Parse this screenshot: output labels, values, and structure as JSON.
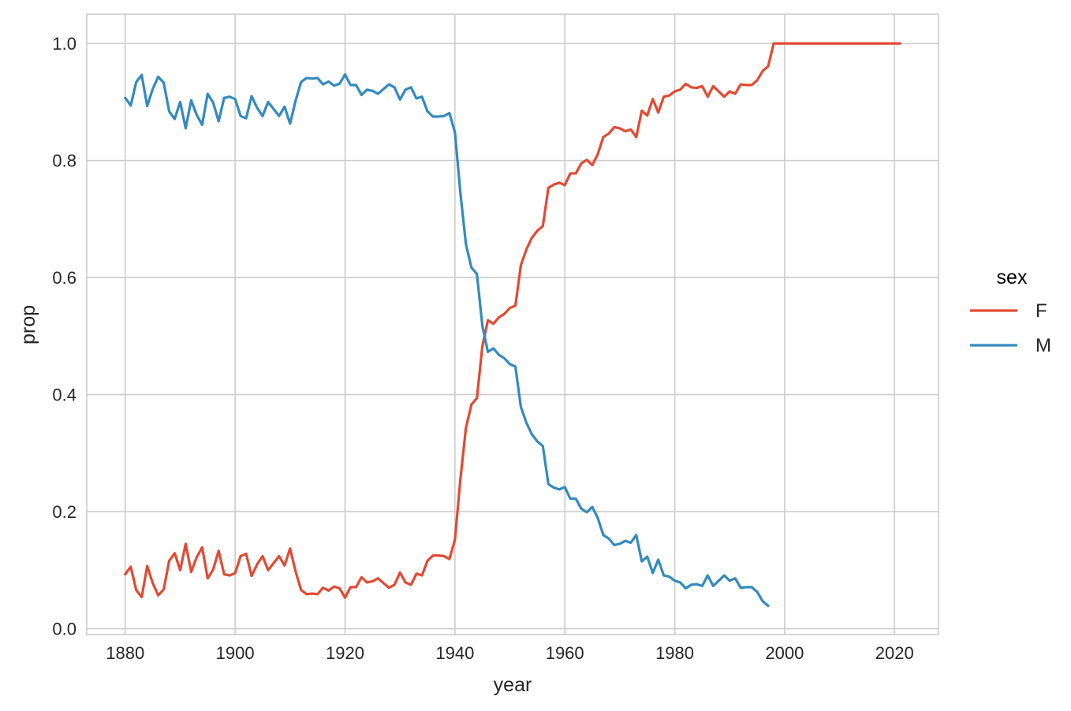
{
  "chart_data": {
    "type": "line",
    "xlabel": "year",
    "ylabel": "prop",
    "xlim": [
      1873,
      2028
    ],
    "ylim": [
      -0.01,
      1.05
    ],
    "xticks": [
      1880,
      1900,
      1920,
      1940,
      1960,
      1980,
      2000,
      2020
    ],
    "yticks": [
      0.0,
      0.2,
      0.4,
      0.6,
      0.8,
      1.0
    ],
    "xtick_labels": [
      "1880",
      "1900",
      "1920",
      "1940",
      "1960",
      "1980",
      "2000",
      "2020"
    ],
    "ytick_labels": [
      "0.0",
      "0.2",
      "0.4",
      "0.6",
      "0.8",
      "1.0"
    ],
    "grid": true,
    "legend": {
      "title": "sex",
      "placement": "right"
    },
    "series": [
      {
        "name": "F",
        "color": "#e24a33",
        "points": [
          [
            1880,
            0.093
          ],
          [
            1881,
            0.106
          ],
          [
            1882,
            0.066
          ],
          [
            1883,
            0.054
          ],
          [
            1884,
            0.107
          ],
          [
            1885,
            0.078
          ],
          [
            1886,
            0.057
          ],
          [
            1887,
            0.067
          ],
          [
            1888,
            0.116
          ],
          [
            1889,
            0.129
          ],
          [
            1890,
            0.1
          ],
          [
            1891,
            0.145
          ],
          [
            1892,
            0.097
          ],
          [
            1893,
            0.122
          ],
          [
            1894,
            0.139
          ],
          [
            1895,
            0.086
          ],
          [
            1896,
            0.101
          ],
          [
            1897,
            0.133
          ],
          [
            1898,
            0.093
          ],
          [
            1899,
            0.091
          ],
          [
            1900,
            0.095
          ],
          [
            1901,
            0.124
          ],
          [
            1902,
            0.128
          ],
          [
            1903,
            0.09
          ],
          [
            1904,
            0.11
          ],
          [
            1905,
            0.124
          ],
          [
            1906,
            0.1
          ],
          [
            1907,
            0.112
          ],
          [
            1908,
            0.124
          ],
          [
            1909,
            0.108
          ],
          [
            1910,
            0.137
          ],
          [
            1911,
            0.098
          ],
          [
            1912,
            0.066
          ],
          [
            1913,
            0.059
          ],
          [
            1914,
            0.06
          ],
          [
            1915,
            0.059
          ],
          [
            1916,
            0.07
          ],
          [
            1917,
            0.065
          ],
          [
            1918,
            0.072
          ],
          [
            1919,
            0.069
          ],
          [
            1920,
            0.053
          ],
          [
            1921,
            0.071
          ],
          [
            1922,
            0.071
          ],
          [
            1923,
            0.088
          ],
          [
            1924,
            0.079
          ],
          [
            1925,
            0.081
          ],
          [
            1926,
            0.086
          ],
          [
            1927,
            0.078
          ],
          [
            1928,
            0.07
          ],
          [
            1929,
            0.075
          ],
          [
            1930,
            0.096
          ],
          [
            1931,
            0.079
          ],
          [
            1932,
            0.075
          ],
          [
            1933,
            0.094
          ],
          [
            1934,
            0.091
          ],
          [
            1935,
            0.116
          ],
          [
            1936,
            0.125
          ],
          [
            1937,
            0.125
          ],
          [
            1938,
            0.124
          ],
          [
            1939,
            0.119
          ],
          [
            1940,
            0.152
          ],
          [
            1941,
            0.256
          ],
          [
            1942,
            0.343
          ],
          [
            1943,
            0.383
          ],
          [
            1944,
            0.394
          ],
          [
            1945,
            0.483
          ],
          [
            1946,
            0.527
          ],
          [
            1947,
            0.521
          ],
          [
            1948,
            0.532
          ],
          [
            1949,
            0.538
          ],
          [
            1950,
            0.548
          ],
          [
            1951,
            0.552
          ],
          [
            1952,
            0.621
          ],
          [
            1953,
            0.648
          ],
          [
            1954,
            0.668
          ],
          [
            1955,
            0.68
          ],
          [
            1956,
            0.688
          ],
          [
            1957,
            0.753
          ],
          [
            1958,
            0.759
          ],
          [
            1959,
            0.762
          ],
          [
            1960,
            0.758
          ],
          [
            1961,
            0.778
          ],
          [
            1962,
            0.778
          ],
          [
            1963,
            0.795
          ],
          [
            1964,
            0.801
          ],
          [
            1965,
            0.792
          ],
          [
            1966,
            0.811
          ],
          [
            1967,
            0.84
          ],
          [
            1968,
            0.846
          ],
          [
            1969,
            0.857
          ],
          [
            1970,
            0.855
          ],
          [
            1971,
            0.85
          ],
          [
            1972,
            0.853
          ],
          [
            1973,
            0.84
          ],
          [
            1974,
            0.885
          ],
          [
            1975,
            0.877
          ],
          [
            1976,
            0.905
          ],
          [
            1977,
            0.882
          ],
          [
            1978,
            0.909
          ],
          [
            1979,
            0.911
          ],
          [
            1980,
            0.918
          ],
          [
            1981,
            0.921
          ],
          [
            1982,
            0.931
          ],
          [
            1983,
            0.925
          ],
          [
            1984,
            0.924
          ],
          [
            1985,
            0.927
          ],
          [
            1986,
            0.909
          ],
          [
            1987,
            0.927
          ],
          [
            1988,
            0.918
          ],
          [
            1989,
            0.909
          ],
          [
            1990,
            0.918
          ],
          [
            1991,
            0.914
          ],
          [
            1992,
            0.93
          ],
          [
            1993,
            0.929
          ],
          [
            1994,
            0.929
          ],
          [
            1995,
            0.937
          ],
          [
            1996,
            0.953
          ],
          [
            1997,
            0.961
          ],
          [
            1998,
            1.0
          ],
          [
            1999,
            1.0
          ],
          [
            2000,
            1.0
          ],
          [
            2001,
            1.0
          ],
          [
            2002,
            1.0
          ],
          [
            2003,
            1.0
          ],
          [
            2004,
            1.0
          ],
          [
            2005,
            1.0
          ],
          [
            2006,
            1.0
          ],
          [
            2007,
            1.0
          ],
          [
            2008,
            1.0
          ],
          [
            2009,
            1.0
          ],
          [
            2010,
            1.0
          ],
          [
            2011,
            1.0
          ],
          [
            2012,
            1.0
          ],
          [
            2013,
            1.0
          ],
          [
            2014,
            1.0
          ],
          [
            2015,
            1.0
          ],
          [
            2016,
            1.0
          ],
          [
            2017,
            1.0
          ],
          [
            2018,
            1.0
          ],
          [
            2019,
            1.0
          ],
          [
            2020,
            1.0
          ],
          [
            2021,
            1.0
          ]
        ]
      },
      {
        "name": "M",
        "color": "#348abd",
        "points": [
          [
            1880,
            0.907
          ],
          [
            1881,
            0.894
          ],
          [
            1882,
            0.934
          ],
          [
            1883,
            0.946
          ],
          [
            1884,
            0.893
          ],
          [
            1885,
            0.922
          ],
          [
            1886,
            0.943
          ],
          [
            1887,
            0.933
          ],
          [
            1888,
            0.884
          ],
          [
            1889,
            0.871
          ],
          [
            1890,
            0.9
          ],
          [
            1891,
            0.855
          ],
          [
            1892,
            0.903
          ],
          [
            1893,
            0.878
          ],
          [
            1894,
            0.861
          ],
          [
            1895,
            0.914
          ],
          [
            1896,
            0.899
          ],
          [
            1897,
            0.867
          ],
          [
            1898,
            0.907
          ],
          [
            1899,
            0.909
          ],
          [
            1900,
            0.905
          ],
          [
            1901,
            0.876
          ],
          [
            1902,
            0.872
          ],
          [
            1903,
            0.91
          ],
          [
            1904,
            0.89
          ],
          [
            1905,
            0.876
          ],
          [
            1906,
            0.9
          ],
          [
            1907,
            0.888
          ],
          [
            1908,
            0.876
          ],
          [
            1909,
            0.892
          ],
          [
            1910,
            0.863
          ],
          [
            1911,
            0.902
          ],
          [
            1912,
            0.934
          ],
          [
            1913,
            0.941
          ],
          [
            1914,
            0.94
          ],
          [
            1915,
            0.941
          ],
          [
            1916,
            0.93
          ],
          [
            1917,
            0.935
          ],
          [
            1918,
            0.928
          ],
          [
            1919,
            0.931
          ],
          [
            1920,
            0.947
          ],
          [
            1921,
            0.929
          ],
          [
            1922,
            0.929
          ],
          [
            1923,
            0.912
          ],
          [
            1924,
            0.921
          ],
          [
            1925,
            0.919
          ],
          [
            1926,
            0.914
          ],
          [
            1927,
            0.922
          ],
          [
            1928,
            0.93
          ],
          [
            1929,
            0.925
          ],
          [
            1930,
            0.904
          ],
          [
            1931,
            0.921
          ],
          [
            1932,
            0.925
          ],
          [
            1933,
            0.906
          ],
          [
            1934,
            0.909
          ],
          [
            1935,
            0.884
          ],
          [
            1936,
            0.875
          ],
          [
            1937,
            0.875
          ],
          [
            1938,
            0.876
          ],
          [
            1939,
            0.881
          ],
          [
            1940,
            0.848
          ],
          [
            1941,
            0.744
          ],
          [
            1942,
            0.657
          ],
          [
            1943,
            0.617
          ],
          [
            1944,
            0.606
          ],
          [
            1945,
            0.517
          ],
          [
            1946,
            0.473
          ],
          [
            1947,
            0.479
          ],
          [
            1948,
            0.468
          ],
          [
            1949,
            0.462
          ],
          [
            1950,
            0.452
          ],
          [
            1951,
            0.448
          ],
          [
            1952,
            0.379
          ],
          [
            1953,
            0.352
          ],
          [
            1954,
            0.332
          ],
          [
            1955,
            0.32
          ],
          [
            1956,
            0.312
          ],
          [
            1957,
            0.247
          ],
          [
            1958,
            0.241
          ],
          [
            1959,
            0.238
          ],
          [
            1960,
            0.242
          ],
          [
            1961,
            0.222
          ],
          [
            1962,
            0.222
          ],
          [
            1963,
            0.205
          ],
          [
            1964,
            0.199
          ],
          [
            1965,
            0.208
          ],
          [
            1966,
            0.189
          ],
          [
            1967,
            0.16
          ],
          [
            1968,
            0.154
          ],
          [
            1969,
            0.143
          ],
          [
            1970,
            0.145
          ],
          [
            1971,
            0.15
          ],
          [
            1972,
            0.147
          ],
          [
            1973,
            0.16
          ],
          [
            1974,
            0.115
          ],
          [
            1975,
            0.123
          ],
          [
            1976,
            0.095
          ],
          [
            1977,
            0.118
          ],
          [
            1978,
            0.091
          ],
          [
            1979,
            0.089
          ],
          [
            1980,
            0.082
          ],
          [
            1981,
            0.079
          ],
          [
            1982,
            0.069
          ],
          [
            1983,
            0.075
          ],
          [
            1984,
            0.076
          ],
          [
            1985,
            0.073
          ],
          [
            1986,
            0.091
          ],
          [
            1987,
            0.073
          ],
          [
            1988,
            0.082
          ],
          [
            1989,
            0.091
          ],
          [
            1990,
            0.082
          ],
          [
            1991,
            0.086
          ],
          [
            1992,
            0.07
          ],
          [
            1993,
            0.071
          ],
          [
            1994,
            0.071
          ],
          [
            1995,
            0.063
          ],
          [
            1996,
            0.047
          ],
          [
            1997,
            0.039
          ]
        ]
      }
    ]
  }
}
